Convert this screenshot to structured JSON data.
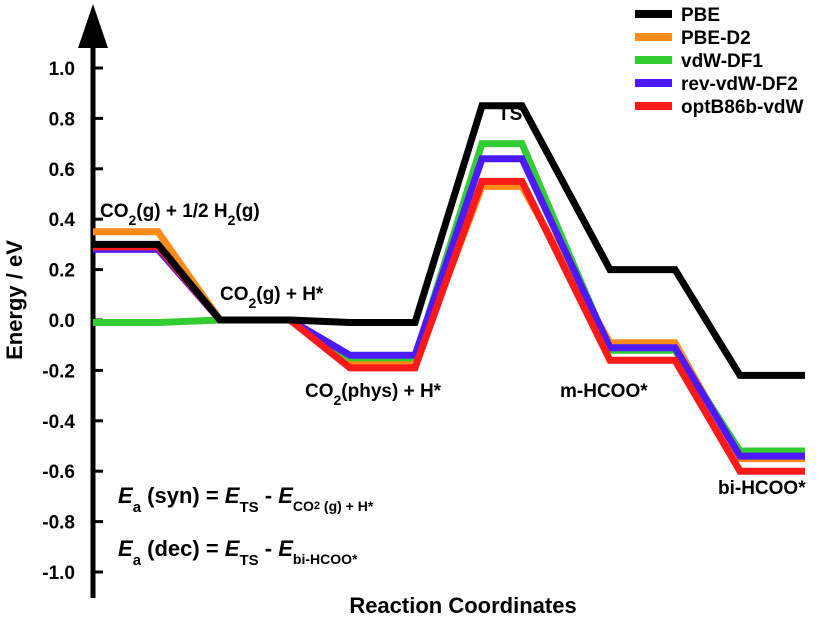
{
  "chart_data": {
    "type": "line",
    "xlabel": "Reaction Coordinates",
    "ylabel": "Energy / eV",
    "ylim": [
      -1.0,
      1.0
    ],
    "y_ticks": [
      1.0,
      0.8,
      0.6,
      0.4,
      0.2,
      0.0,
      -0.2,
      -0.4,
      -0.6,
      -0.8,
      -1.0
    ],
    "y_tick_labels": [
      "1.0",
      "0.8",
      "0.6",
      "0.4",
      "0.2",
      "0.0",
      "-0.2",
      "-0.4",
      "-0.6",
      "-0.8",
      "-1.0"
    ],
    "states": [
      "CO2(g) + 1/2 H2(g)",
      "CO2(g) + H*",
      "CO2(phys) + H*",
      "TS",
      "m-HCOO*",
      "bi-HCOO*"
    ],
    "state_labels": [
      {
        "main": "CO",
        "sub": "2",
        "rest": "(g) + 1/2 H",
        "sub2": "2",
        "rest2": "(g)"
      },
      {
        "main": "CO",
        "sub": "2",
        "rest": "(g) + H*",
        "sub2": "",
        "rest2": ""
      },
      {
        "main": "CO",
        "sub": "2",
        "rest": "(phys) + H*",
        "sub2": "",
        "rest2": ""
      },
      {
        "main": "TS",
        "sub": "",
        "rest": "",
        "sub2": "",
        "rest2": ""
      },
      {
        "main": "m-HCOO*",
        "sub": "",
        "rest": "",
        "sub2": "",
        "rest2": ""
      },
      {
        "main": "bi-HCOO*",
        "sub": "",
        "rest": "",
        "sub2": "",
        "rest2": ""
      }
    ],
    "series": [
      {
        "name": "PBE",
        "color": "#000000",
        "values": [
          0.3,
          0.0,
          -0.01,
          0.85,
          0.2,
          -0.22
        ]
      },
      {
        "name": "PBE-D2",
        "color": "#ff8c1a",
        "values": [
          0.35,
          0.0,
          -0.17,
          0.53,
          -0.09,
          -0.55
        ]
      },
      {
        "name": "vdW-DF1",
        "color": "#33cc33",
        "values": [
          -0.01,
          0.0,
          -0.15,
          0.7,
          -0.12,
          -0.52
        ]
      },
      {
        "name": "rev-vdW-DF2",
        "color": "#4d1aff",
        "values": [
          0.28,
          0.0,
          -0.14,
          0.64,
          -0.11,
          -0.54
        ]
      },
      {
        "name": "optB86b-vdW",
        "color": "#ff1a1a",
        "values": [
          0.29,
          0.0,
          -0.19,
          0.55,
          -0.16,
          -0.6
        ]
      }
    ],
    "legend": [
      "PBE",
      "PBE-D2",
      "vdW-DF1",
      "rev-vdW-DF2",
      "optB86b-vdW"
    ],
    "legend_placement": "top-right",
    "equations": [
      {
        "E": "E",
        "a": "a",
        "paren": " (syn) = ",
        "E2": "E",
        "ts": "TS",
        "minus": " - ",
        "E3": "E",
        "sub": "CO",
        "sub_sub": "2",
        "sub_rest": " (g) + H*"
      },
      {
        "E": "E",
        "a": "a",
        "paren": " (dec) = ",
        "E2": "E",
        "ts": "TS",
        "minus": " - ",
        "E3": "E",
        "sub": "bi-HCOO*",
        "sub_sub": "",
        "sub_rest": ""
      }
    ]
  }
}
